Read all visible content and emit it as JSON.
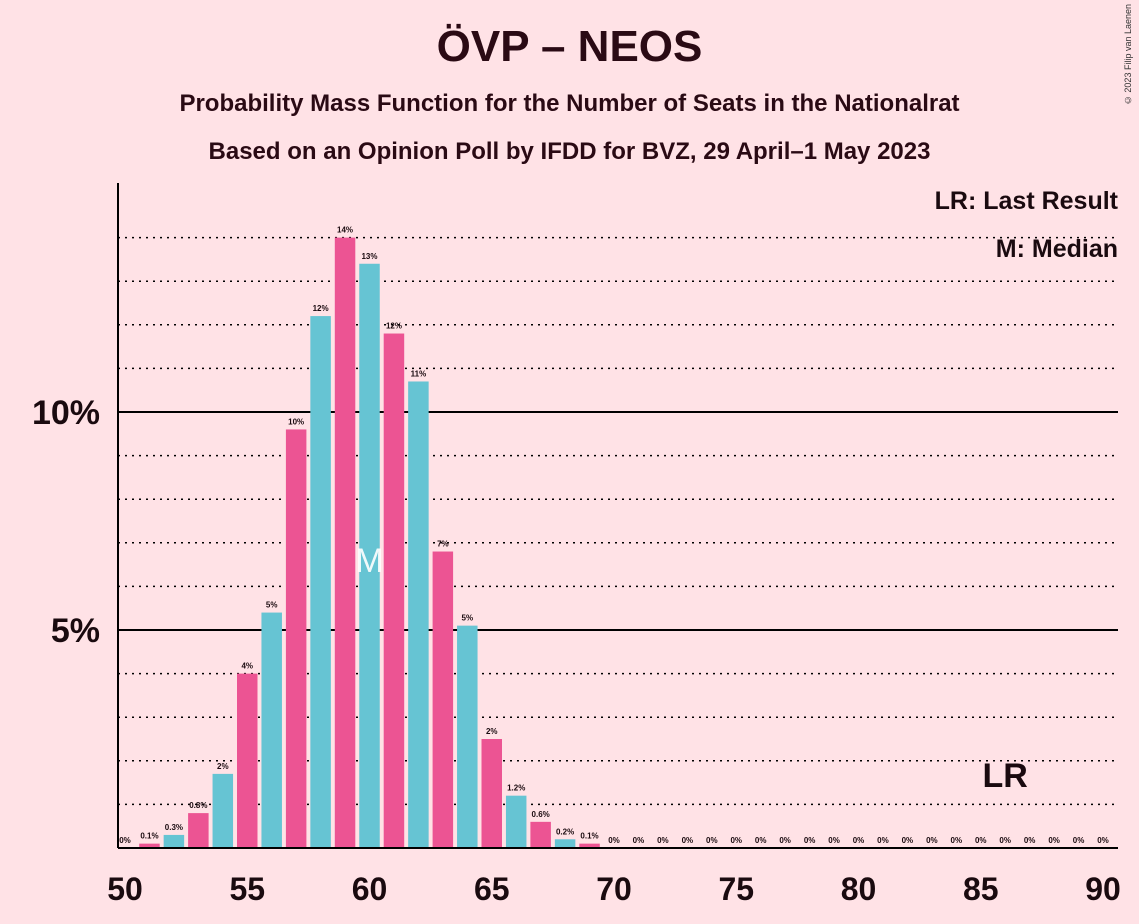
{
  "title": "ÖVP – NEOS",
  "subtitle_1": "Probability Mass Function for the Number of Seats in the Nationalrat",
  "subtitle_2": "Based on an Opinion Poll by IFDD for BVZ, 29 April–1 May 2023",
  "copyright": "© 2023 Filip van Laenen",
  "legend": {
    "last_result": "LR: Last Result",
    "median": "M: Median"
  },
  "markers": {
    "median_label": "M",
    "median_seat": 60,
    "last_result_label": "LR",
    "last_result_seat": 86
  },
  "colors": {
    "pink": "#ec5493",
    "cyan": "#66c4d3",
    "background": "#ffe2e6"
  },
  "chart_data": {
    "type": "bar",
    "xlim": [
      50,
      90
    ],
    "ylim": [
      0,
      15
    ],
    "x_ticks": [
      50,
      55,
      60,
      65,
      70,
      75,
      80,
      85,
      90
    ],
    "y_ticks": [
      {
        "value": 5,
        "label": "5%"
      },
      {
        "value": 10,
        "label": "10%"
      }
    ],
    "x": [
      50,
      51,
      52,
      53,
      54,
      55,
      56,
      57,
      58,
      59,
      60,
      61,
      62,
      63,
      64,
      65,
      66,
      67,
      68,
      69,
      70,
      71,
      72,
      73,
      74,
      75,
      76,
      77,
      78,
      79,
      80,
      81,
      82,
      83,
      84,
      85,
      86,
      87,
      88,
      89,
      90
    ],
    "values": [
      0,
      0.1,
      0.3,
      0.8,
      1.7,
      4.0,
      5.4,
      9.6,
      12.2,
      14.0,
      13.4,
      11.8,
      10.7,
      6.8,
      5.1,
      2.5,
      1.2,
      0.6,
      0.2,
      0.1,
      0,
      0,
      0,
      0,
      0,
      0,
      0,
      0,
      0,
      0,
      0,
      0,
      0,
      0,
      0,
      0,
      0,
      0,
      0,
      0,
      0
    ],
    "labels": [
      "0%",
      "0.1%",
      "0.3%",
      "0.8%",
      "2%",
      "4%",
      "5%",
      "10%",
      "12%",
      "14%",
      "13%",
      "12%",
      "11%",
      "7%",
      "5%",
      "2%",
      "1.2%",
      "0.6%",
      "0.2%",
      "0.1%",
      "0%",
      "0%",
      "0%",
      "0%",
      "0%",
      "0%",
      "0%",
      "0%",
      "0%",
      "0%",
      "0%",
      "0%",
      "0%",
      "0%",
      "0%",
      "0%",
      "0%",
      "0%",
      "0%",
      "0%",
      "0%"
    ]
  }
}
